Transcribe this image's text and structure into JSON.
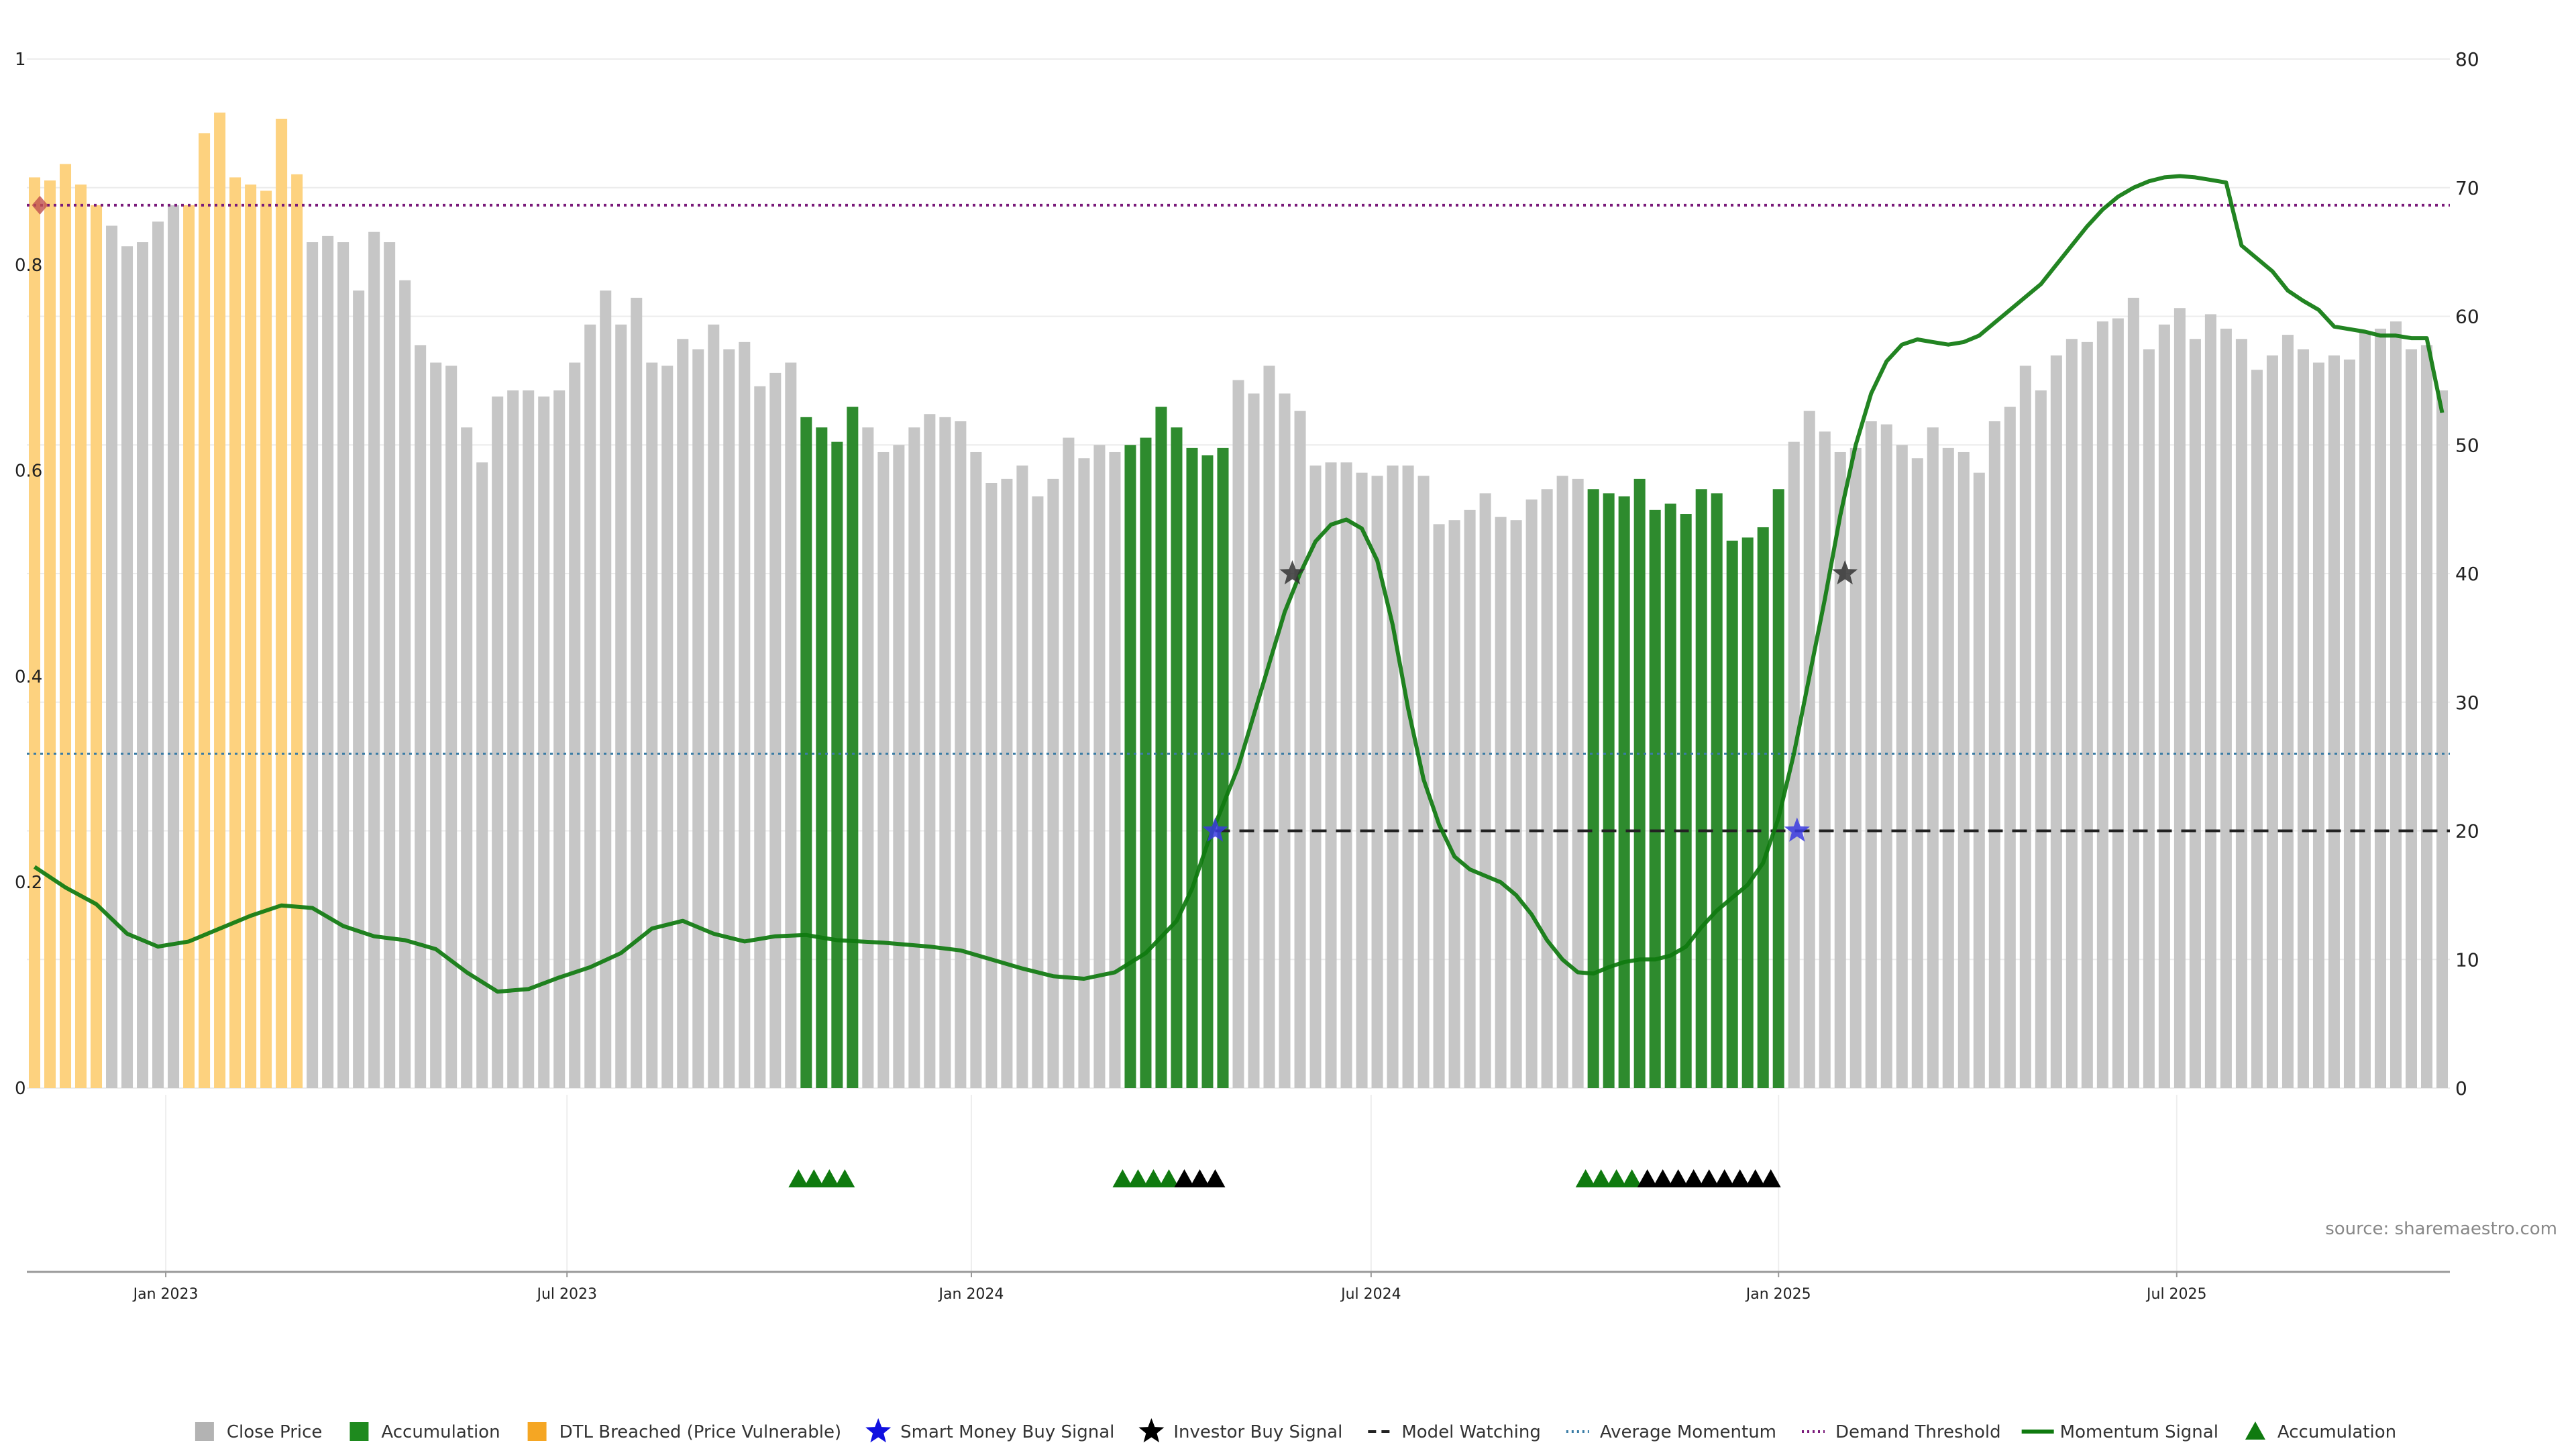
{
  "chart_data": {
    "type": "bar",
    "title": "",
    "source": "source: sharemaestro.com",
    "y_left": {
      "ticks": [
        "0",
        "0.2",
        "0.4",
        "0.6",
        "0.8",
        "1"
      ],
      "range": [
        0,
        1
      ]
    },
    "y_right": {
      "ticks": [
        "0",
        "10",
        "20",
        "30",
        "40",
        "50",
        "60",
        "70",
        "80"
      ],
      "range": [
        0,
        80
      ]
    },
    "x_ticks": [
      {
        "label": "Jan 2023",
        "bar_index": 8.5
      },
      {
        "label": "Jul 2023",
        "bar_index": 34.5
      },
      {
        "label": "Jan 2024",
        "bar_index": 60.7
      },
      {
        "label": "Jul 2024",
        "bar_index": 86.6
      },
      {
        "label": "Jan 2025",
        "bar_index": 113
      },
      {
        "label": "Jul 2025",
        "bar_index": 138.8
      }
    ],
    "bar_count": 157,
    "close_price": [
      0.885,
      0.882,
      0.898,
      0.878,
      0.858,
      0.838,
      0.818,
      0.822,
      0.842,
      0.858,
      0.858,
      0.928,
      0.948,
      0.885,
      0.878,
      0.872,
      0.942,
      0.888,
      0.822,
      0.828,
      0.822,
      0.775,
      0.832,
      0.822,
      0.785,
      0.722,
      0.705,
      0.702,
      0.642,
      0.608,
      0.672,
      0.678,
      0.678,
      0.672,
      0.678,
      0.705,
      0.742,
      0.775,
      0.742,
      0.768,
      0.705,
      0.702,
      0.728,
      0.718,
      0.742,
      0.718,
      0.725,
      0.682,
      0.695,
      0.705,
      0.652,
      0.642,
      0.628,
      0.662,
      0.642,
      0.618,
      0.625,
      0.642,
      0.655,
      0.652,
      0.648,
      0.618,
      0.588,
      0.592,
      0.605,
      0.575,
      0.592,
      0.632,
      0.612,
      0.625,
      0.618,
      0.625,
      0.632,
      0.662,
      0.642,
      0.622,
      0.615,
      0.622,
      0.688,
      0.675,
      0.702,
      0.675,
      0.658,
      0.605,
      0.608,
      0.608,
      0.598,
      0.595,
      0.605,
      0.605,
      0.595,
      0.548,
      0.552,
      0.562,
      0.578,
      0.555,
      0.552,
      0.572,
      0.582,
      0.595,
      0.592,
      0.582,
      0.578,
      0.575,
      0.592,
      0.562,
      0.568,
      0.558,
      0.582,
      0.578,
      0.532,
      0.535,
      0.545,
      0.582,
      0.628,
      0.658,
      0.638,
      0.618,
      0.622,
      0.648,
      0.645,
      0.625,
      0.612,
      0.642,
      0.622,
      0.618,
      0.598,
      0.648,
      0.662,
      0.702,
      0.678,
      0.712,
      0.728,
      0.725,
      0.745,
      0.748,
      0.768,
      0.718,
      0.742,
      0.758,
      0.728,
      0.752,
      0.738,
      0.728,
      0.698,
      0.712,
      0.732,
      0.718,
      0.705,
      0.712,
      0.708,
      0.735,
      0.738,
      0.745,
      0.718,
      0.722,
      0.678
    ],
    "bar_category": [
      "d",
      "d",
      "d",
      "d",
      "d",
      "g",
      "g",
      "g",
      "g",
      "g",
      "d",
      "d",
      "d",
      "d",
      "d",
      "d",
      "d",
      "d",
      "g",
      "g",
      "g",
      "g",
      "g",
      "g",
      "g",
      "g",
      "g",
      "g",
      "g",
      "g",
      "g",
      "g",
      "g",
      "g",
      "g",
      "g",
      "g",
      "g",
      "g",
      "g",
      "g",
      "g",
      "g",
      "g",
      "g",
      "g",
      "g",
      "g",
      "g",
      "g",
      "a",
      "a",
      "a",
      "a",
      "g",
      "g",
      "g",
      "g",
      "g",
      "g",
      "g",
      "g",
      "g",
      "g",
      "g",
      "g",
      "g",
      "g",
      "g",
      "g",
      "g",
      "a",
      "a",
      "a",
      "a",
      "a",
      "a",
      "a",
      "g",
      "g",
      "g",
      "g",
      "g",
      "g",
      "g",
      "g",
      "g",
      "g",
      "g",
      "g",
      "g",
      "g",
      "g",
      "g",
      "g",
      "g",
      "g",
      "g",
      "g",
      "g",
      "g",
      "a",
      "a",
      "a",
      "a",
      "a",
      "a",
      "a",
      "a",
      "a",
      "a",
      "a",
      "a",
      "a",
      "g",
      "g",
      "g",
      "g",
      "g",
      "g",
      "g",
      "g",
      "g",
      "g",
      "g",
      "g",
      "g",
      "g",
      "g",
      "g",
      "g",
      "g",
      "g",
      "g",
      "g",
      "g",
      "g",
      "g",
      "g",
      "g",
      "g",
      "g",
      "g",
      "g",
      "g",
      "g",
      "g",
      "g",
      "g",
      "g",
      "g",
      "g",
      "g",
      "g",
      "g",
      "g",
      "g"
    ],
    "momentum_signal": [
      [
        0,
        17.2
      ],
      [
        2,
        15.6
      ],
      [
        4,
        14.3
      ],
      [
        6,
        12.0
      ],
      [
        8,
        11.0
      ],
      [
        10,
        11.4
      ],
      [
        12,
        12.4
      ],
      [
        14,
        13.4
      ],
      [
        16,
        14.2
      ],
      [
        18,
        14.0
      ],
      [
        20,
        12.6
      ],
      [
        22,
        11.8
      ],
      [
        24,
        11.5
      ],
      [
        26,
        10.8
      ],
      [
        28,
        9.0
      ],
      [
        30,
        7.5
      ],
      [
        32,
        7.7
      ],
      [
        34,
        8.6
      ],
      [
        36,
        9.4
      ],
      [
        38,
        10.5
      ],
      [
        40,
        12.4
      ],
      [
        42,
        13.0
      ],
      [
        44,
        12.0
      ],
      [
        46,
        11.4
      ],
      [
        48,
        11.8
      ],
      [
        50,
        11.9
      ],
      [
        52,
        11.5
      ],
      [
        55,
        11.3
      ],
      [
        58,
        11.0
      ],
      [
        60,
        10.7
      ],
      [
        62,
        10.0
      ],
      [
        64,
        9.3
      ],
      [
        66,
        8.7
      ],
      [
        68,
        8.5
      ],
      [
        70,
        9.0
      ],
      [
        72,
        10.5
      ],
      [
        74,
        13.0
      ],
      [
        75,
        15.5
      ],
      [
        76,
        19.0
      ],
      [
        77,
        22.0
      ],
      [
        78,
        25.0
      ],
      [
        79,
        29.0
      ],
      [
        80,
        33.0
      ],
      [
        81,
        37.0
      ],
      [
        82,
        40.0
      ],
      [
        83,
        42.5
      ],
      [
        84,
        43.8
      ],
      [
        85,
        44.2
      ],
      [
        86,
        43.5
      ],
      [
        87,
        41.0
      ],
      [
        88,
        36.0
      ],
      [
        89,
        29.5
      ],
      [
        90,
        24.0
      ],
      [
        91,
        20.5
      ],
      [
        92,
        18.0
      ],
      [
        93,
        17.0
      ],
      [
        94,
        16.5
      ],
      [
        95,
        16.0
      ],
      [
        96,
        15.0
      ],
      [
        97,
        13.5
      ],
      [
        98,
        11.5
      ],
      [
        99,
        10.0
      ],
      [
        100,
        9.0
      ],
      [
        101,
        8.9
      ],
      [
        102,
        9.4
      ],
      [
        103,
        9.8
      ],
      [
        104,
        10.0
      ],
      [
        105,
        10.0
      ],
      [
        106,
        10.3
      ],
      [
        107,
        11.0
      ],
      [
        108,
        12.5
      ],
      [
        109,
        13.8
      ],
      [
        110,
        14.8
      ],
      [
        111,
        15.8
      ],
      [
        112,
        17.5
      ],
      [
        113,
        21.0
      ],
      [
        114,
        26.0
      ],
      [
        115,
        32.0
      ],
      [
        116,
        38.0
      ],
      [
        117,
        44.5
      ],
      [
        118,
        50.0
      ],
      [
        119,
        54.0
      ],
      [
        120,
        56.5
      ],
      [
        121,
        57.8
      ],
      [
        122,
        58.2
      ],
      [
        123,
        58.0
      ],
      [
        124,
        57.8
      ],
      [
        125,
        58.0
      ],
      [
        126,
        58.5
      ],
      [
        127,
        59.5
      ],
      [
        128,
        60.5
      ],
      [
        129,
        61.5
      ],
      [
        130,
        62.5
      ],
      [
        131,
        64.0
      ],
      [
        132,
        65.5
      ],
      [
        133,
        67.0
      ],
      [
        134,
        68.3
      ],
      [
        135,
        69.3
      ],
      [
        136,
        70.0
      ],
      [
        137,
        70.5
      ],
      [
        138,
        70.8
      ],
      [
        139,
        70.9
      ],
      [
        140,
        70.8
      ],
      [
        141,
        70.6
      ],
      [
        142,
        70.4
      ],
      [
        143,
        65.5
      ],
      [
        144,
        64.5
      ],
      [
        145,
        63.5
      ],
      [
        146,
        62.0
      ],
      [
        147,
        61.2
      ],
      [
        148,
        60.5
      ],
      [
        149,
        59.2
      ],
      [
        150,
        59.0
      ],
      [
        151,
        58.8
      ],
      [
        152,
        58.5
      ],
      [
        153,
        58.5
      ],
      [
        154,
        58.3
      ],
      [
        155,
        58.3
      ],
      [
        156,
        52.5
      ]
    ],
    "average_momentum": 26,
    "demand_threshold": 0.858,
    "model_watching": {
      "value": 20,
      "from_bar": 76.5
    },
    "smart_money_buy": [
      {
        "bar": 76.5,
        "value": 20
      },
      {
        "bar": 114.2,
        "value": 20
      }
    ],
    "investor_buy": [
      {
        "bar": 81.5,
        "value": 40
      },
      {
        "bar": 117.3,
        "value": 40
      }
    ],
    "dtl_marker": {
      "bar": 0,
      "value": 0.858
    },
    "accumulation_markers_green": [
      49.5,
      50.5,
      51.5,
      52.5,
      70.5,
      71.5,
      72.5,
      73.5,
      100.5,
      101.5,
      102.5,
      103.5
    ],
    "accumulation_markers_black": [
      74.5,
      75.5,
      76.5,
      104.5,
      105.5,
      106.5,
      107.5,
      108.5,
      109.5,
      110.5,
      111.5,
      112.5
    ],
    "legend": [
      {
        "label": "Close Price",
        "kind": "square",
        "color": "#b3b3b3"
      },
      {
        "label": "Accumulation",
        "kind": "square",
        "color": "#1e8a1e"
      },
      {
        "label": "DTL Breached (Price Vulnerable)",
        "kind": "square",
        "color": "#f5a623"
      },
      {
        "label": "Smart Money Buy Signal",
        "kind": "star",
        "color": "#1010e0"
      },
      {
        "label": "Investor Buy Signal",
        "kind": "star",
        "color": "#000000"
      },
      {
        "label": "Model Watching",
        "kind": "dash",
        "color": "#222222"
      },
      {
        "label": "Average Momentum",
        "kind": "dot",
        "color": "#3a7ca5"
      },
      {
        "label": "Demand Threshold",
        "kind": "dot",
        "color": "#7a1a7a"
      },
      {
        "label": "Momentum Signal",
        "kind": "line",
        "color": "#0f7a0f"
      },
      {
        "label": "Accumulation",
        "kind": "triangle",
        "color": "#0f7a0f"
      }
    ],
    "colors": {
      "grey": "#c6c6c6",
      "green": "#2e8b2e",
      "orange": "#fdd27f",
      "momentum": "#0f7a0f",
      "avg": "#3a7ca5",
      "demand": "#7a1a7a",
      "watch": "#222222",
      "smart": "#3a3ae0",
      "investor": "#333333",
      "dtl_marker": "#c0504d"
    }
  }
}
